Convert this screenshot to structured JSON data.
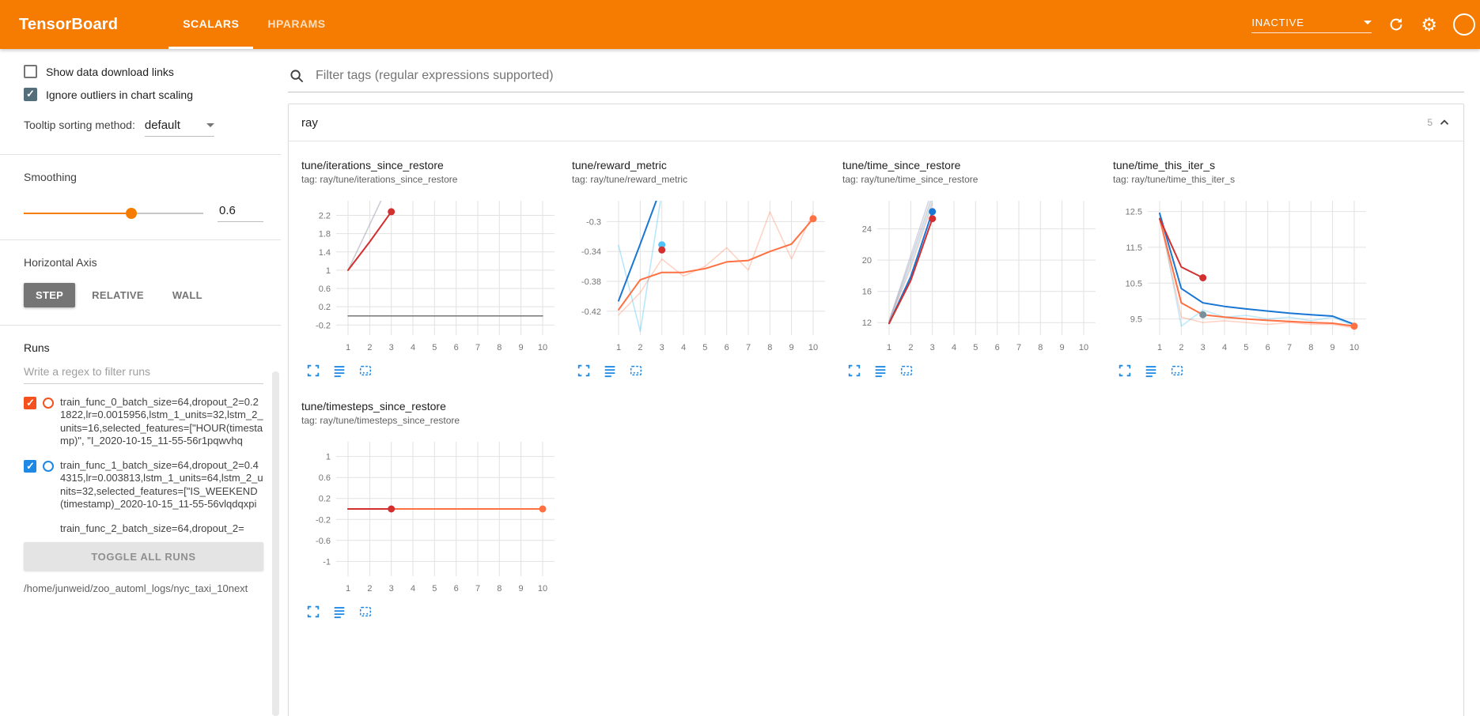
{
  "theme": {
    "header_bg": "#f57c00",
    "icon_blue": "#1e88e5",
    "checkbox_gray": "#546e7a"
  },
  "header": {
    "title": "TensorBoard",
    "tabs": [
      {
        "label": "SCALARS",
        "active": true
      },
      {
        "label": "HPARAMS",
        "active": false
      }
    ],
    "status_dropdown": "INACTIVE"
  },
  "sidebar": {
    "show_download_label": "Show data download links",
    "ignore_outliers_label": "Ignore outliers in chart scaling",
    "tooltip_sorting_label": "Tooltip sorting method:",
    "tooltip_sorting_value": "default",
    "smoothing_label": "Smoothing",
    "smoothing_value": "0.6",
    "horizontal_axis_label": "Horizontal Axis",
    "axis_options": [
      {
        "label": "STEP",
        "selected": true
      },
      {
        "label": "RELATIVE",
        "selected": false
      },
      {
        "label": "WALL",
        "selected": false
      }
    ],
    "runs_label": "Runs",
    "runs_filter_placeholder": "Write a regex to filter runs",
    "runs": [
      {
        "label": "train_func_0_batch_size=64,dropout_2=0.21822,lr=0.0015956,lstm_1_units=32,lstm_2_units=16,selected_features=[\"HOUR(timestamp)\", \"I_2020-10-15_11-55-56r1pqwvhq",
        "checked": true,
        "color": "#f4511e",
        "clipped": false
      },
      {
        "label": "train_func_1_batch_size=64,dropout_2=0.44315,lr=0.003813,lstm_1_units=64,lstm_2_units=32,selected_features=[\"IS_WEEKEND(timestamp)_2020-10-15_11-55-56vlqdqxpi",
        "checked": true,
        "color": "#1e88e5",
        "clipped": false
      },
      {
        "label": "train_func_2_batch_size=64,dropout_2=",
        "checked": true,
        "color": "#d32f2f",
        "clipped": true
      }
    ],
    "toggle_all_label": "TOGGLE ALL RUNS",
    "log_dir": "/home/junweid/zoo_automl_logs/nyc_taxi_10next"
  },
  "main": {
    "tag_filter_placeholder": "Filter tags (regular expressions supported)",
    "group": {
      "name": "ray",
      "count": "5"
    }
  },
  "chart_data": [
    {
      "type": "line",
      "title": "tune/iterations_since_restore",
      "tag": "tag: ray/tune/iterations_since_restore",
      "xlim": [
        0.45,
        10.55
      ],
      "xticks": [
        1,
        2,
        3,
        4,
        5,
        6,
        7,
        8,
        9,
        10
      ],
      "ylim": [
        -0.42,
        2.52
      ],
      "yticks": [
        -0.2,
        0.2,
        0.6,
        1,
        1.4,
        1.8,
        2.2
      ],
      "series": [
        {
          "name": "zero-baseline-run",
          "color": "#757575",
          "width": 1.5,
          "opacity": 1,
          "points": [
            [
              1,
              0
            ],
            [
              10,
              0
            ]
          ]
        },
        {
          "name": "train_func_0-raw",
          "color": "#ff7043",
          "width": 1.6,
          "opacity": 0.3,
          "points": [
            [
              1,
              1
            ],
            [
              2,
              2
            ],
            [
              3,
              3
            ]
          ]
        },
        {
          "name": "train_func_1-raw",
          "color": "#4fc3f7",
          "width": 1.6,
          "opacity": 0.3,
          "points": [
            [
              1,
              1
            ],
            [
              2,
              2
            ],
            [
              3,
              3
            ]
          ]
        },
        {
          "name": "train_func_0-smoothed",
          "color": "#d32f2f",
          "width": 2,
          "opacity": 1,
          "points": [
            [
              1,
              1
            ],
            [
              2,
              1.62
            ],
            [
              3,
              2.28
            ]
          ],
          "endDot": true
        }
      ]
    },
    {
      "type": "line",
      "title": "tune/reward_metric",
      "tag": "tag: ray/tune/reward_metric",
      "xlim": [
        0.45,
        10.55
      ],
      "xticks": [
        1,
        2,
        3,
        4,
        5,
        6,
        7,
        8,
        9,
        10
      ],
      "ylim": [
        -0.452,
        -0.272
      ],
      "yticks": [
        -0.42,
        -0.38,
        -0.34,
        -0.3
      ],
      "series": [
        {
          "name": "train_func_1-raw",
          "color": "#4fc3f7",
          "width": 1.6,
          "opacity": 0.4,
          "points": [
            [
              1,
              -0.332
            ],
            [
              2,
              -0.447
            ],
            [
              3,
              -0.26
            ]
          ]
        },
        {
          "name": "train_func_1-smoothed",
          "color": "#1976d2",
          "width": 2,
          "opacity": 1,
          "points": [
            [
              1,
              -0.406
            ],
            [
              2,
              -0.33
            ],
            [
              3,
              -0.252
            ]
          ]
        },
        {
          "name": "train_func_2-raw",
          "color": "#ff7043",
          "width": 1.6,
          "opacity": 0.3,
          "points": [
            [
              1,
              -0.425
            ],
            [
              2,
              -0.395
            ],
            [
              3,
              -0.35
            ],
            [
              4,
              -0.373
            ],
            [
              5,
              -0.36
            ],
            [
              6,
              -0.335
            ],
            [
              7,
              -0.365
            ],
            [
              8,
              -0.287
            ],
            [
              9,
              -0.35
            ],
            [
              10,
              -0.288
            ]
          ]
        },
        {
          "name": "train_func_2-smoothed",
          "color": "#ff7043",
          "width": 2,
          "opacity": 1,
          "points": [
            [
              1,
              -0.418
            ],
            [
              2,
              -0.378
            ],
            [
              3,
              -0.368
            ],
            [
              4,
              -0.368
            ],
            [
              5,
              -0.363
            ],
            [
              6,
              -0.354
            ],
            [
              7,
              -0.352
            ],
            [
              8,
              -0.34
            ],
            [
              9,
              -0.33
            ],
            [
              10,
              -0.296
            ]
          ],
          "endDot": true
        },
        {
          "name": "train_func_1-final-dot",
          "color": "#4fc3f7",
          "points": [
            [
              3,
              -0.331
            ]
          ],
          "endDot": true
        },
        {
          "name": "train_func_0-final-dot",
          "color": "#d32f2f",
          "points": [
            [
              3,
              -0.338
            ]
          ],
          "endDot": true
        }
      ]
    },
    {
      "type": "line",
      "title": "tune/time_since_restore",
      "tag": "tag: ray/tune/time_since_restore",
      "xlim": [
        0.45,
        10.55
      ],
      "xticks": [
        1,
        2,
        3,
        4,
        5,
        6,
        7,
        8,
        9,
        10
      ],
      "ylim": [
        10.4,
        27.6
      ],
      "yticks": [
        12,
        16,
        20,
        24
      ],
      "series": [
        {
          "name": "raw-a",
          "color": "#b3aed1",
          "width": 1.6,
          "opacity": 0.55,
          "points": [
            [
              1,
              12.2
            ],
            [
              2,
              20.6
            ],
            [
              3,
              29
            ]
          ]
        },
        {
          "name": "raw-b",
          "color": "#9e9e9e",
          "width": 1.6,
          "opacity": 0.45,
          "points": [
            [
              1,
              12.2
            ],
            [
              2,
              20
            ],
            [
              3,
              28.2
            ]
          ]
        },
        {
          "name": "train_func_1-raw",
          "color": "#4fc3f7",
          "width": 1.6,
          "opacity": 0.35,
          "points": [
            [
              1,
              12.1
            ],
            [
              2,
              19.4
            ],
            [
              3,
              27.6
            ]
          ]
        },
        {
          "name": "train_func_0-raw",
          "color": "#ff7043",
          "width": 1.6,
          "opacity": 0.3,
          "points": [
            [
              1,
              12.1
            ],
            [
              2,
              19
            ],
            [
              3,
              27.2
            ]
          ]
        },
        {
          "name": "train_func_1-smoothed",
          "color": "#1976d2",
          "width": 2,
          "opacity": 1,
          "points": [
            [
              1,
              11.9
            ],
            [
              2,
              17.9
            ],
            [
              3,
              26.2
            ]
          ],
          "endDot": true
        },
        {
          "name": "train_func_0-smoothed",
          "color": "#d32f2f",
          "width": 2,
          "opacity": 1,
          "points": [
            [
              1,
              11.9
            ],
            [
              2,
              17.4
            ],
            [
              3,
              25.3
            ]
          ],
          "endDot": true
        }
      ]
    },
    {
      "type": "line",
      "title": "tune/time_this_iter_s",
      "tag": "tag: ray/tune/time_this_iter_s",
      "xlim": [
        0.45,
        10.55
      ],
      "xticks": [
        1,
        2,
        3,
        4,
        5,
        6,
        7,
        8,
        9,
        10
      ],
      "ylim": [
        9.05,
        12.8
      ],
      "yticks": [
        9.5,
        10.5,
        11.5,
        12.5
      ],
      "series": [
        {
          "name": "train_func_1-raw",
          "color": "#4fc3f7",
          "width": 1.6,
          "opacity": 0.35,
          "points": [
            [
              1,
              12.45
            ],
            [
              2,
              9.3
            ],
            [
              3,
              9.75
            ],
            [
              4,
              9.55
            ],
            [
              5,
              9.6
            ],
            [
              6,
              9.5
            ],
            [
              7,
              9.55
            ],
            [
              8,
              9.45
            ],
            [
              9,
              9.55
            ],
            [
              10,
              9.3
            ]
          ]
        },
        {
          "name": "train_func_2-raw",
          "color": "#ff7043",
          "width": 1.6,
          "opacity": 0.3,
          "points": [
            [
              1,
              12.3
            ],
            [
              2,
              9.55
            ],
            [
              3,
              9.4
            ],
            [
              4,
              9.45
            ],
            [
              5,
              9.4
            ],
            [
              6,
              9.35
            ],
            [
              7,
              9.4
            ],
            [
              8,
              9.35
            ],
            [
              9,
              9.35
            ],
            [
              10,
              9.25
            ]
          ]
        },
        {
          "name": "train_func_1-smoothed",
          "color": "#1976d2",
          "width": 2,
          "opacity": 1,
          "points": [
            [
              1,
              12.45
            ],
            [
              2,
              10.35
            ],
            [
              3,
              9.95
            ],
            [
              4,
              9.85
            ],
            [
              5,
              9.78
            ],
            [
              6,
              9.72
            ],
            [
              7,
              9.66
            ],
            [
              8,
              9.62
            ],
            [
              9,
              9.58
            ],
            [
              10,
              9.35
            ]
          ]
        },
        {
          "name": "train_func_2-smoothed",
          "color": "#ff7043",
          "width": 2,
          "opacity": 1,
          "points": [
            [
              1,
              12.3
            ],
            [
              2,
              9.95
            ],
            [
              3,
              9.62
            ],
            [
              4,
              9.55
            ],
            [
              5,
              9.5
            ],
            [
              6,
              9.46
            ],
            [
              7,
              9.43
            ],
            [
              8,
              9.4
            ],
            [
              9,
              9.38
            ],
            [
              10,
              9.3
            ]
          ],
          "endDot": true
        },
        {
          "name": "train_func_0-smoothed",
          "color": "#d32f2f",
          "width": 2,
          "opacity": 1,
          "points": [
            [
              1,
              12.3
            ],
            [
              2,
              10.95
            ],
            [
              3,
              10.65
            ]
          ],
          "endDot": true
        },
        {
          "name": "train_func_1-final-dot",
          "color": "#78909c",
          "points": [
            [
              3,
              9.62
            ]
          ],
          "endDot": true
        }
      ]
    },
    {
      "type": "line",
      "title": "tune/timesteps_since_restore",
      "tag": "tag: ray/tune/timesteps_since_restore",
      "xlim": [
        0.45,
        10.55
      ],
      "xticks": [
        1,
        2,
        3,
        4,
        5,
        6,
        7,
        8,
        9,
        10
      ],
      "ylim": [
        -1.28,
        1.28
      ],
      "yticks": [
        -1,
        -0.6,
        -0.2,
        0.2,
        0.6,
        1
      ],
      "series": [
        {
          "name": "train_func_2-smoothed",
          "color": "#ff7043",
          "width": 2,
          "opacity": 1,
          "points": [
            [
              1,
              0
            ],
            [
              10,
              0
            ]
          ],
          "endDot": true
        },
        {
          "name": "train_func_0-smoothed",
          "color": "#d32f2f",
          "width": 2,
          "opacity": 1,
          "points": [
            [
              1,
              0
            ],
            [
              3,
              0
            ]
          ],
          "endDot": true
        }
      ]
    }
  ]
}
